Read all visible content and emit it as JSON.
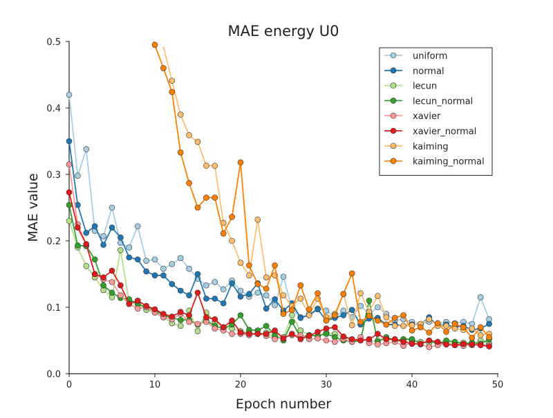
{
  "chart_data": {
    "type": "line",
    "title": "MAE energy U0",
    "xlabel": "Epoch number",
    "ylabel": "MAE value",
    "xlim": [
      0,
      50
    ],
    "ylim": [
      0,
      0.5
    ],
    "xticks": [
      0,
      10,
      20,
      30,
      40,
      50
    ],
    "yticks": [
      0.0,
      0.1,
      0.2,
      0.3,
      0.4,
      0.5
    ],
    "grid": false,
    "legend_position": "top-right",
    "x": [
      0,
      1,
      2,
      3,
      4,
      5,
      6,
      7,
      8,
      9,
      10,
      11,
      12,
      13,
      14,
      15,
      16,
      17,
      18,
      19,
      20,
      21,
      22,
      23,
      24,
      25,
      26,
      27,
      28,
      29,
      30,
      31,
      32,
      33,
      34,
      35,
      36,
      37,
      38,
      39,
      40,
      41,
      42,
      43,
      44,
      45,
      46,
      47,
      48,
      49
    ],
    "series": [
      {
        "name": "uniform",
        "color": "#a6cee3",
        "values": [
          0.42,
          0.298,
          0.338,
          0.215,
          0.207,
          0.25,
          0.197,
          0.19,
          0.222,
          0.17,
          0.172,
          0.158,
          0.165,
          0.174,
          0.158,
          0.143,
          0.133,
          0.138,
          0.127,
          0.14,
          0.125,
          0.116,
          0.122,
          0.118,
          0.103,
          0.146,
          0.097,
          0.085,
          0.09,
          0.098,
          0.095,
          0.085,
          0.095,
          0.085,
          0.102,
          0.09,
          0.1,
          0.09,
          0.08,
          0.082,
          0.078,
          0.075,
          0.078,
          0.075,
          0.078,
          0.076,
          0.078,
          0.075,
          0.115,
          0.082
        ]
      },
      {
        "name": "normal",
        "color": "#1f78b4",
        "values": [
          0.35,
          0.254,
          0.212,
          0.222,
          0.194,
          0.22,
          0.205,
          0.175,
          0.172,
          0.154,
          0.148,
          0.148,
          0.135,
          0.125,
          0.118,
          0.15,
          0.113,
          0.113,
          0.106,
          0.136,
          0.116,
          0.12,
          0.136,
          0.098,
          0.112,
          0.095,
          0.106,
          0.084,
          0.088,
          0.097,
          0.08,
          0.084,
          0.088,
          0.096,
          0.074,
          0.083,
          0.084,
          0.074,
          0.074,
          0.072,
          0.074,
          0.074,
          0.085,
          0.072,
          0.074,
          0.07,
          0.072,
          0.066,
          0.068,
          0.075
        ]
      },
      {
        "name": "lecun",
        "color": "#b2df8a",
        "values": [
          0.23,
          0.19,
          0.162,
          0.145,
          0.126,
          0.115,
          0.186,
          0.108,
          0.105,
          0.096,
          0.093,
          0.085,
          0.076,
          0.072,
          0.095,
          0.064,
          0.092,
          0.078,
          0.07,
          0.068,
          0.064,
          0.062,
          0.06,
          0.062,
          0.054,
          0.055,
          0.088,
          0.065,
          0.058,
          0.057,
          0.062,
          0.06,
          0.055,
          0.05,
          0.052,
          0.048,
          0.05,
          0.052,
          0.05,
          0.048,
          0.05,
          0.048,
          0.046,
          0.047,
          0.046,
          0.046,
          0.047,
          0.045,
          0.05,
          0.046
        ]
      },
      {
        "name": "lecun_normal",
        "color": "#33a02c",
        "values": [
          0.254,
          0.193,
          0.192,
          0.172,
          0.133,
          0.122,
          0.114,
          0.112,
          0.105,
          0.1,
          0.095,
          0.088,
          0.084,
          0.081,
          0.081,
          0.074,
          0.08,
          0.072,
          0.068,
          0.074,
          0.088,
          0.066,
          0.065,
          0.072,
          0.058,
          0.05,
          0.078,
          0.055,
          0.058,
          0.057,
          0.06,
          0.055,
          0.05,
          0.048,
          0.05,
          0.11,
          0.048,
          0.055,
          0.05,
          0.052,
          0.052,
          0.045,
          0.05,
          0.045,
          0.05,
          0.048,
          0.045,
          0.047,
          0.045,
          0.052
        ]
      },
      {
        "name": "xavier",
        "color": "#fb9a99",
        "values": [
          0.315,
          0.225,
          0.195,
          0.15,
          0.142,
          0.138,
          0.118,
          0.105,
          0.098,
          0.1,
          0.092,
          0.085,
          0.082,
          0.09,
          0.078,
          0.075,
          0.078,
          0.068,
          0.065,
          0.06,
          0.06,
          0.058,
          0.06,
          0.057,
          0.052,
          0.055,
          0.058,
          0.058,
          0.052,
          0.053,
          0.05,
          0.048,
          0.052,
          0.048,
          0.055,
          0.046,
          0.044,
          0.046,
          0.048,
          0.042,
          0.046,
          0.044,
          0.04,
          0.043,
          0.044,
          0.043,
          0.042,
          0.043,
          0.044,
          0.043
        ]
      },
      {
        "name": "xavier_normal",
        "color": "#e31a1c",
        "values": [
          0.273,
          0.22,
          0.195,
          0.15,
          0.145,
          0.155,
          0.133,
          0.105,
          0.11,
          0.102,
          0.097,
          0.09,
          0.086,
          0.093,
          0.088,
          0.122,
          0.085,
          0.082,
          0.07,
          0.08,
          0.062,
          0.06,
          0.06,
          0.06,
          0.065,
          0.053,
          0.06,
          0.052,
          0.057,
          0.063,
          0.068,
          0.07,
          0.056,
          0.052,
          0.05,
          0.052,
          0.06,
          0.052,
          0.052,
          0.048,
          0.045,
          0.045,
          0.05,
          0.048,
          0.044,
          0.043,
          0.045,
          0.044,
          0.043,
          0.041
        ]
      },
      {
        "name": "kaiming",
        "color": "#fdbf6f",
        "values": [
          null,
          null,
          null,
          null,
          null,
          null,
          null,
          null,
          null,
          null,
          null,
          null,
          0.441,
          0.39,
          0.359,
          0.349,
          0.313,
          0.313,
          0.227,
          0.2,
          0.167,
          0.148,
          0.232,
          0.145,
          0.148,
          0.118,
          0.102,
          0.113,
          0.088,
          0.113,
          0.085,
          0.09,
          0.12,
          0.073,
          0.121,
          0.093,
          0.117,
          0.085,
          0.072,
          0.072,
          0.073,
          0.075,
          0.082,
          0.072,
          0.072,
          0.068,
          0.066,
          0.068,
          0.058,
          0.06
        ]
      },
      {
        "name": "kaiming_normal",
        "color": "#ff7f00",
        "values": [
          null,
          null,
          null,
          null,
          null,
          null,
          null,
          null,
          null,
          null,
          0.495,
          0.46,
          0.424,
          0.333,
          0.287,
          0.25,
          0.265,
          0.265,
          0.211,
          0.236,
          0.318,
          0.163,
          0.135,
          0.128,
          0.163,
          0.09,
          0.096,
          0.133,
          0.097,
          0.121,
          0.08,
          0.088,
          0.12,
          0.151,
          0.078,
          0.087,
          0.08,
          0.074,
          0.084,
          0.088,
          0.065,
          0.07,
          0.062,
          0.076,
          0.063,
          0.075,
          0.07,
          0.054,
          0.07,
          0.055
        ]
      }
    ]
  }
}
